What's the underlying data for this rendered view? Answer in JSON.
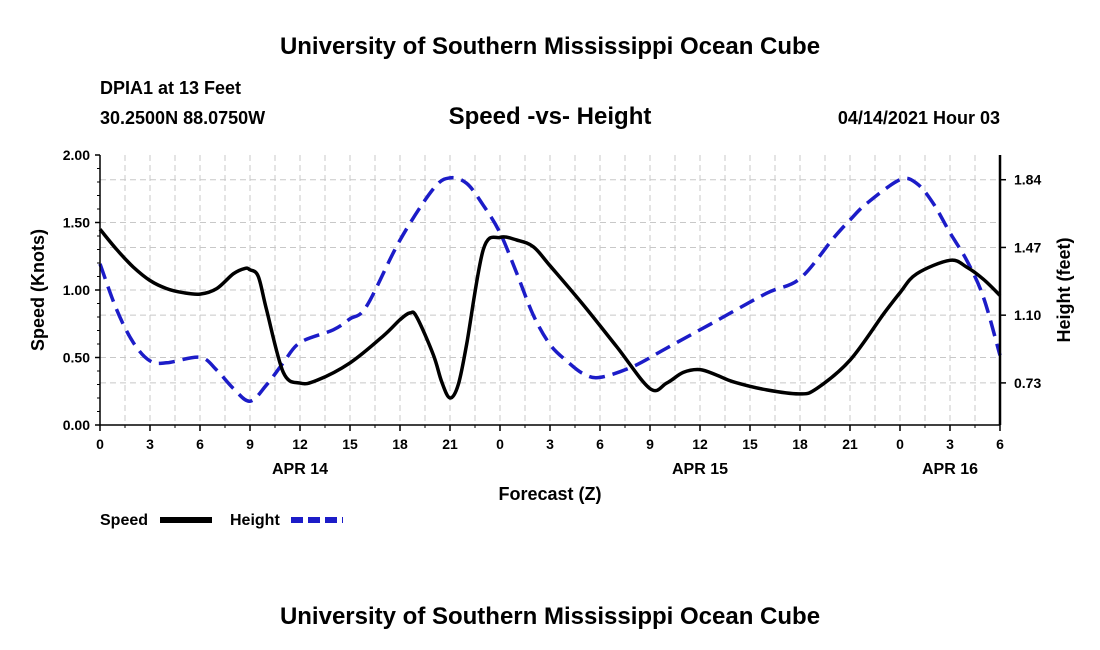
{
  "header": {
    "title": "University of Southern Mississippi Ocean Cube",
    "station": "DPIA1 at 13 Feet",
    "coords": "30.2500N  88.0750W",
    "chart_title": "Speed -vs- Height",
    "date": "04/14/2021 Hour 03"
  },
  "footer": {
    "title": "University of Southern Mississippi Ocean Cube"
  },
  "legend": {
    "speed_label": "Speed",
    "height_label": "Height"
  },
  "chart_data": {
    "type": "line",
    "title": "Speed -vs- Height",
    "xlabel": "Forecast (Z)",
    "ylabel": "Speed (Knots)",
    "y2label": "Height (feet)",
    "x_range": [
      0,
      54
    ],
    "ylim": [
      0,
      2.0
    ],
    "y2lim": [
      0.5,
      1.975
    ],
    "y_ticks": [
      0.0,
      0.5,
      1.0,
      1.5,
      2.0
    ],
    "y_tick_labels": [
      "0.00",
      "0.50",
      "1.00",
      "1.50",
      "2.00"
    ],
    "y2_ticks": [
      0.73,
      1.1,
      1.47,
      1.84
    ],
    "y2_tick_labels": [
      "0.73",
      "1.10",
      "1.47",
      "1.84"
    ],
    "x_ticks": [
      0,
      3,
      6,
      9,
      12,
      15,
      18,
      21,
      24,
      27,
      30,
      33,
      36,
      39,
      42,
      45,
      48,
      51,
      54
    ],
    "x_tick_labels": [
      "0",
      "3",
      "6",
      "9",
      "12",
      "15",
      "18",
      "21",
      "0",
      "3",
      "6",
      "9",
      "12",
      "15",
      "18",
      "21",
      "0",
      "3",
      "6"
    ],
    "date_labels": [
      {
        "x": 12,
        "label": "APR 14"
      },
      {
        "x": 36,
        "label": "APR 15"
      },
      {
        "x": 51,
        "label": "APR 16"
      }
    ],
    "grid": true,
    "legend_position": "bottom-left",
    "series": [
      {
        "name": "Speed",
        "axis": "left",
        "color": "#000000",
        "style": "solid",
        "x": [
          0,
          1,
          2,
          3,
          4,
          5,
          6,
          7,
          8,
          8.7,
          9,
          9.5,
          10,
          11,
          12,
          13,
          15,
          17,
          18,
          18.6,
          19,
          20,
          20.5,
          21,
          21.5,
          22,
          23,
          24,
          25,
          26,
          27,
          29,
          31,
          33,
          34,
          35,
          36,
          37,
          38,
          40,
          42,
          43,
          45,
          47,
          48,
          49,
          51,
          52,
          53,
          54
        ],
        "y": [
          1.45,
          1.3,
          1.17,
          1.07,
          1.01,
          0.98,
          0.97,
          1.01,
          1.12,
          1.16,
          1.15,
          1.1,
          0.85,
          0.39,
          0.31,
          0.33,
          0.46,
          0.66,
          0.78,
          0.83,
          0.8,
          0.52,
          0.32,
          0.2,
          0.3,
          0.6,
          1.3,
          1.39,
          1.37,
          1.32,
          1.18,
          0.89,
          0.58,
          0.27,
          0.31,
          0.39,
          0.41,
          0.37,
          0.32,
          0.26,
          0.23,
          0.27,
          0.48,
          0.82,
          0.98,
          1.12,
          1.22,
          1.17,
          1.08,
          0.96
        ]
      },
      {
        "name": "Height",
        "axis": "right",
        "color": "#1c1cc8",
        "style": "dashed",
        "x": [
          0,
          1,
          2,
          3,
          4,
          6,
          7,
          8,
          9,
          10,
          11,
          12,
          14,
          15,
          16,
          18,
          20,
          21,
          22,
          23,
          24,
          25,
          26,
          27,
          28,
          29,
          30,
          32,
          34,
          37,
          40,
          42,
          44,
          45,
          46,
          48,
          49,
          50,
          51,
          52,
          53,
          54
        ],
        "y": [
          1.38,
          1.13,
          0.95,
          0.85,
          0.84,
          0.87,
          0.8,
          0.7,
          0.63,
          0.72,
          0.84,
          0.95,
          1.02,
          1.08,
          1.15,
          1.51,
          1.79,
          1.85,
          1.82,
          1.7,
          1.55,
          1.33,
          1.1,
          0.94,
          0.85,
          0.78,
          0.76,
          0.82,
          0.92,
          1.07,
          1.22,
          1.3,
          1.52,
          1.62,
          1.71,
          1.84,
          1.82,
          1.71,
          1.55,
          1.4,
          1.2,
          0.88
        ]
      }
    ]
  }
}
